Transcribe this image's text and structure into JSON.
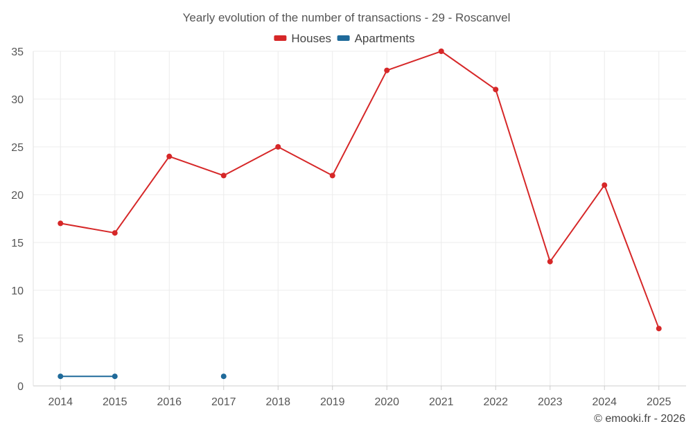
{
  "chart_data": {
    "type": "line",
    "title": "Yearly evolution of the number of transactions - 29 - Roscanvel",
    "categories": [
      "2014",
      "2015",
      "2016",
      "2017",
      "2018",
      "2019",
      "2020",
      "2021",
      "2022",
      "2023",
      "2024",
      "2025"
    ],
    "series": [
      {
        "name": "Houses",
        "color": "#d62728",
        "values": [
          17,
          16,
          24,
          22,
          25,
          22,
          33,
          35,
          31,
          13,
          21,
          6
        ]
      },
      {
        "name": "Apartments",
        "color": "#1f6a9a",
        "values": [
          1,
          1,
          null,
          1,
          null,
          null,
          null,
          null,
          null,
          null,
          null,
          null
        ]
      }
    ],
    "y_ticks": [
      "0",
      "5",
      "10",
      "15",
      "20",
      "25",
      "30",
      "35"
    ],
    "ylim": [
      0,
      35
    ],
    "xlabel": "",
    "ylabel": "",
    "grid": true,
    "legend_position": "top-center"
  },
  "credit": "© emooki.fr - 2026"
}
